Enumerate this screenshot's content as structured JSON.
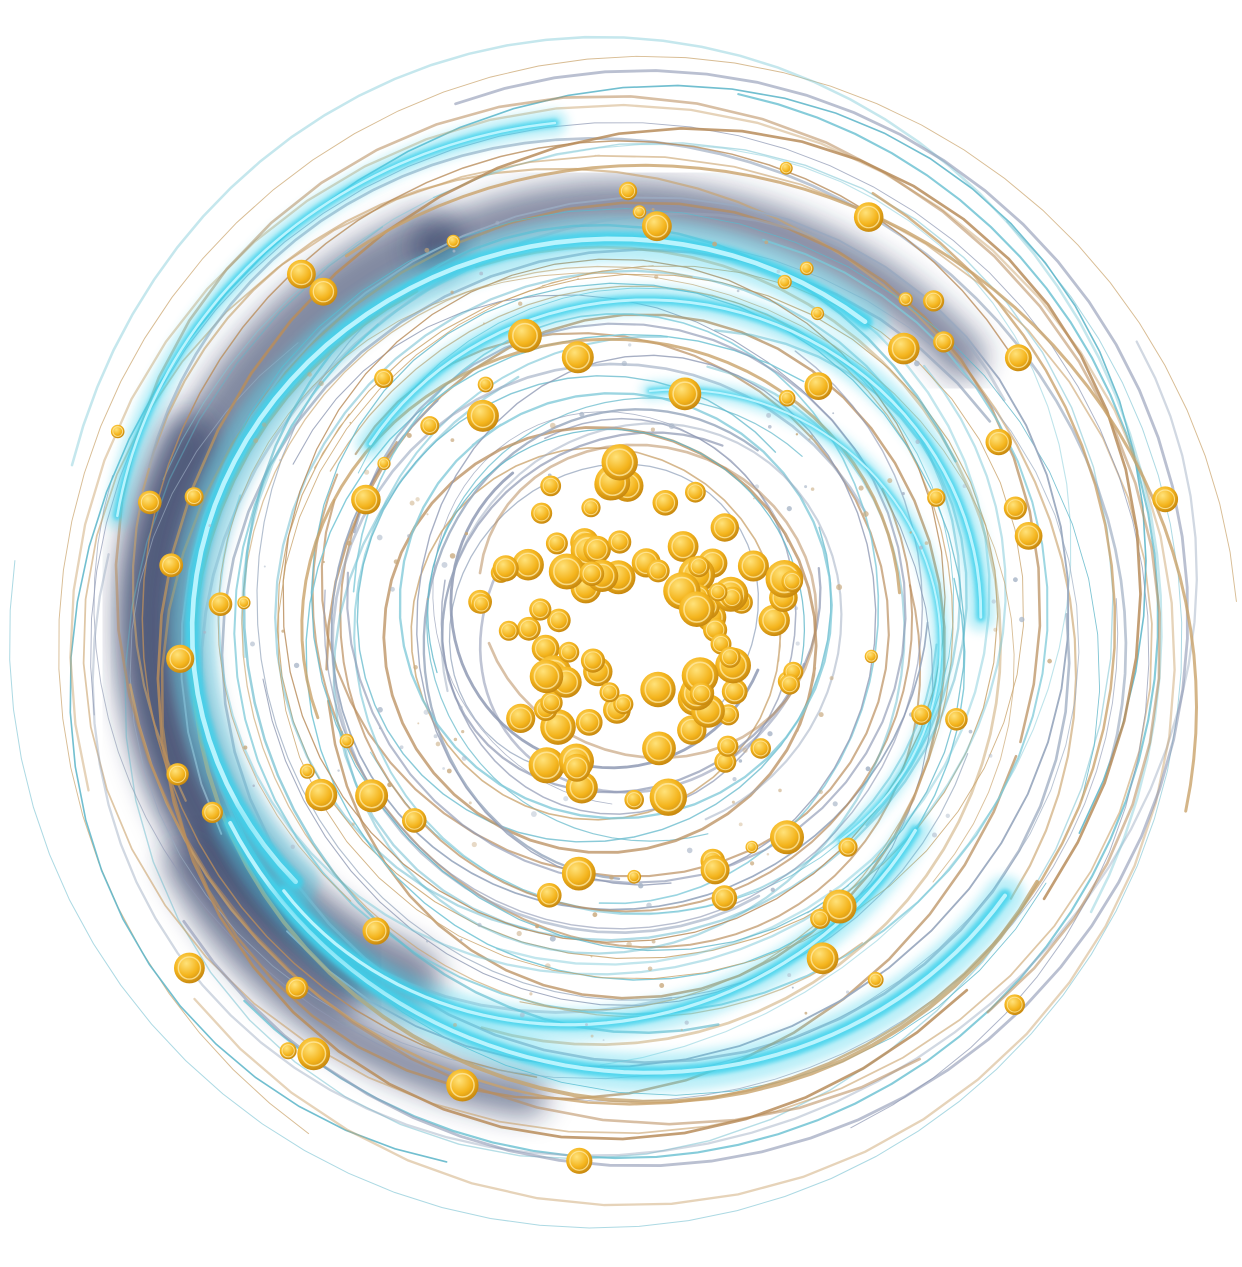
{
  "artwork": {
    "subject": "swirling-vortex-with-gold-coins",
    "background_color": "#ffffff",
    "colors": {
      "cyan_glow": "#3fd2ec",
      "cyan_bright": "#bff6ff",
      "navy_shadow": "#1c2a55",
      "gold_ring": "#c9a26a",
      "silver_ring": "#9aa9bf",
      "coin_fill": "#f4b41c",
      "coin_highlight": "#ffe27a",
      "coin_edge": "#c98a10"
    },
    "coin_icon": "dollar-coin-icon",
    "coin_glyph": "$"
  }
}
